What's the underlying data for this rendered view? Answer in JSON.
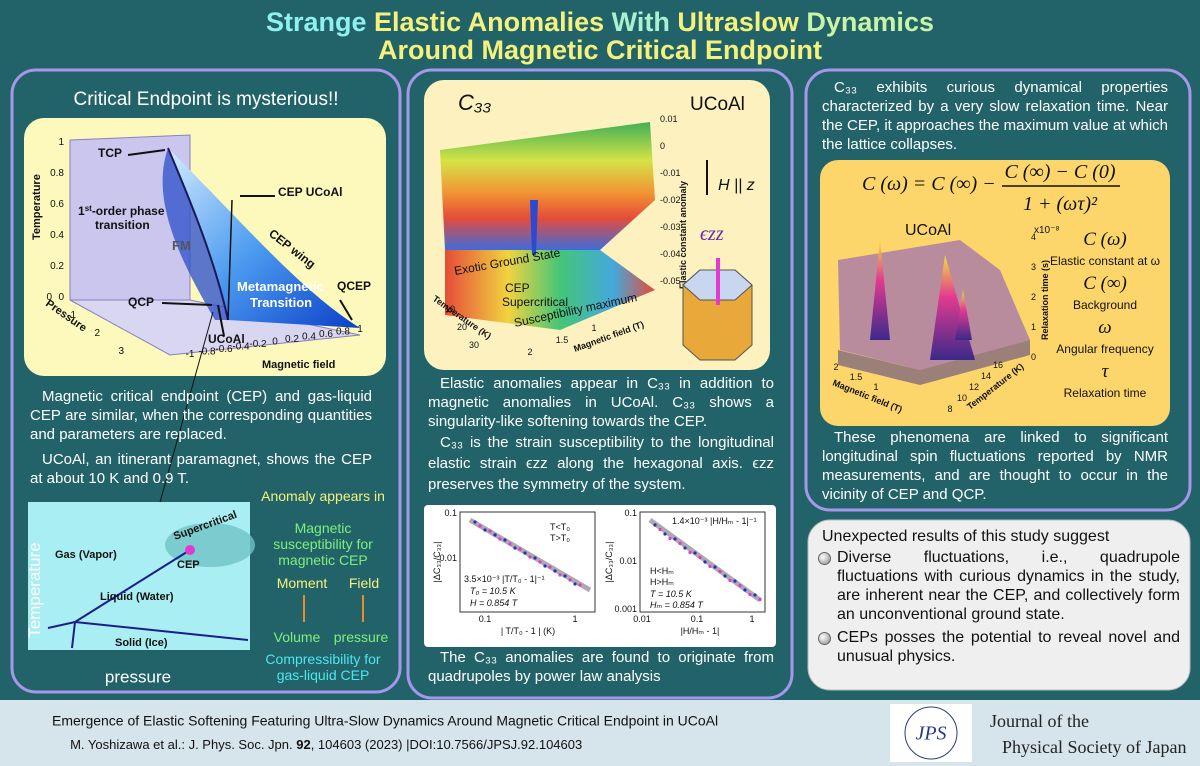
{
  "title": {
    "line1": [
      {
        "text": "Strange ",
        "color": "#8ff0ee"
      },
      {
        "text": "Elastic Anomalies",
        "color": "#f4f27c"
      },
      {
        "text": " With ",
        "color": "#a8f2cf"
      },
      {
        "text": "Ultraslow ",
        "color": "#f4f27c"
      },
      {
        "text": "Dynamics",
        "color": "#c9f3a6"
      }
    ],
    "line2": [
      {
        "text": "Around Magnetic Critical Endpoint",
        "color": "#f4f27c"
      }
    ]
  },
  "left": {
    "heading": "Critical Endpoint is mysterious!!",
    "diagram3d": {
      "tcp": "TCP",
      "first_order_sup": "st",
      "first_order_1": "1",
      "first_order_2": "-order phase",
      "first_order_3": "transition",
      "fm": "FM",
      "cep_ucoal": "CEP UCoAl",
      "cep_wing": "CEP wing",
      "qcep": "QCEP",
      "qcp": "QCP",
      "metamagnetic": "Metamagnetic",
      "transition": "Transition",
      "ucoal": "UCoAl",
      "temperature_label": "Temperature",
      "pressure_label": "Pressure",
      "field_label": "Magnetic field",
      "temperature_ticks": [
        "1",
        "0.8",
        "0.6",
        "0.4",
        "0.2",
        "0"
      ],
      "pressure_ticks": [
        "0",
        "1",
        "2",
        "3"
      ],
      "field_ticks": [
        "-1",
        "-0.8",
        "-0.6",
        "-0.4",
        "-0.2",
        "0",
        "0.2",
        "0.4",
        "0.6",
        "0.8",
        "1"
      ]
    },
    "paragraph1": "Magnetic critical endpoint (CEP) and gas-liquid CEP are similar, when the corresponding quantities and parameters are replaced.",
    "paragraph2": "UCoAl, an itinerant paramagnet, shows the CEP at about 10 K and 0.9 T.",
    "phase_diagram": {
      "gas": "Gas (Vapor)",
      "supercritical": "Supercritical",
      "cep": "CEP",
      "liquid": "Liquid (Water)",
      "solid": "Solid (Ice)",
      "y_label": "Temperature",
      "x_label": "pressure"
    },
    "notes": {
      "anomaly": "Anomaly appears in",
      "magnetic": "Magnetic susceptibility for magnetic CEP",
      "moment": "Moment",
      "field": "Field",
      "volume": "Volume",
      "pressure": "pressure",
      "compressibility": "Compressibility for gas-liquid CEP"
    }
  },
  "middle": {
    "figure": {
      "c33": "C₃₃",
      "ucoal": "UCoAl",
      "h_parallel": "H || z",
      "strain": "ϵzz",
      "exotic": "Exotic Ground State",
      "cep": "CEP",
      "supercritical": "Supercritical",
      "susceptibility": "Susceptibility maximum",
      "z_label": "Elastic constant anomaly",
      "t_label": "Temperature (K)",
      "h_label": "Magnetic field (T)",
      "z_ticks": [
        "0.01",
        "0",
        "-0.01",
        "-0.02",
        "-0.03",
        "-0.04",
        "-0.05"
      ],
      "t_ticks": [
        "10",
        "20",
        "30"
      ],
      "h_ticks": [
        "2",
        "1.5",
        "1"
      ]
    },
    "paragraph1": "Elastic anomalies appear in C₃₃ in addition to magnetic anomalies in UCoAl. C₃₃ shows a singularity-like softening towards the CEP.",
    "paragraph2": "C₃₃ is the strain susceptibility to the longitudinal elastic strain ϵzz along the hexagonal axis. ϵzz preserves the symmetry of the system.",
    "powerlaw": {
      "left": {
        "y_label": "|ΔC₃₃/C₃₃|",
        "y_ticks": [
          "0.1",
          "0.01"
        ],
        "x_ticks": [
          "0.1",
          "1"
        ],
        "x_label": "| T/T₀ - 1 | (K)",
        "legend": [
          "T<T₀",
          "T>T₀"
        ],
        "fit": "3.5×10⁻³ |T/T₀ - 1|⁻¹",
        "t0": "T₀ = 10.5 K",
        "h": "H = 0.854 T"
      },
      "right": {
        "y_label": "|ΔC₃₃/C₃₃|",
        "y_ticks": [
          "0.1",
          "0.01",
          "0.001"
        ],
        "x_ticks": [
          "0.01",
          "0.1",
          "1"
        ],
        "x_label": "|H/Hₘ - 1|",
        "legend": [
          "H<Hₘ",
          "H>Hₘ"
        ],
        "fit": "1.4×10⁻³ |H/Hₘ - 1|⁻¹",
        "t": "T = 10.5 K",
        "hm": "Hₘ = 0.854 T"
      }
    },
    "conclusion": "The C₃₃ anomalies are found to originate from quadrupoles by power law analysis"
  },
  "right": {
    "paragraph1": "C₃₃ exhibits curious dynamical properties characterized by a very slow relaxation time. Near the CEP, it approaches the maximum value at which the lattice collapses.",
    "formula": {
      "lhs": "C (ω) = C (∞) −",
      "numerator": "C (∞) − C (0)",
      "denominator": "1 + (ωτ)²"
    },
    "figure": {
      "ucoal": "UCoAl",
      "scale": "x10⁻⁸",
      "z_label": "Relaxation time (s)",
      "z_ticks": [
        "4",
        "3",
        "2",
        "1",
        "0"
      ],
      "h_label": "Magnetic field (T)",
      "h_ticks": [
        "2",
        "1.5",
        "1"
      ],
      "t_label": "Temperature (K)",
      "t_ticks": [
        "8",
        "10",
        "12",
        "14",
        "16"
      ],
      "legend": [
        {
          "symbol": "C (ω)",
          "meaning": "Elastic constant at ω"
        },
        {
          "symbol": "C (∞)",
          "meaning": "Background"
        },
        {
          "symbol": "ω",
          "meaning": "Angular frequency"
        },
        {
          "symbol": "τ",
          "meaning": "Relaxation time"
        }
      ]
    },
    "paragraph2": "These phenomena are linked to significant longitudinal spin fluctuations reported by NMR measurements, and are thought to occur in the vicinity of CEP and QCP.",
    "summary": {
      "title": "Unexpected results of this study suggest",
      "bullets": [
        "Diverse fluctuations, i.e., quadrupole fluctuations with curious dynamics in the study, are inherent near the CEP, and collectively form an unconventional ground state.",
        "CEPs posses the potential to reveal novel and unusual physics."
      ]
    }
  },
  "footer": {
    "paper_title": "Emergence of Elastic Softening Featuring Ultra-Slow Dynamics Around Magnetic Critical Endpoint in UCoAl",
    "citation": [
      "M. Yoshizawa et al.: J. Phys. Soc. Jpn. ",
      "92",
      ", 104603 (2023) |DOI:10.7566/JPSJ.92.104603"
    ],
    "logo": "JPS",
    "journal_line1": "Journal of the",
    "journal_line2": "Physical Society of Japan"
  }
}
